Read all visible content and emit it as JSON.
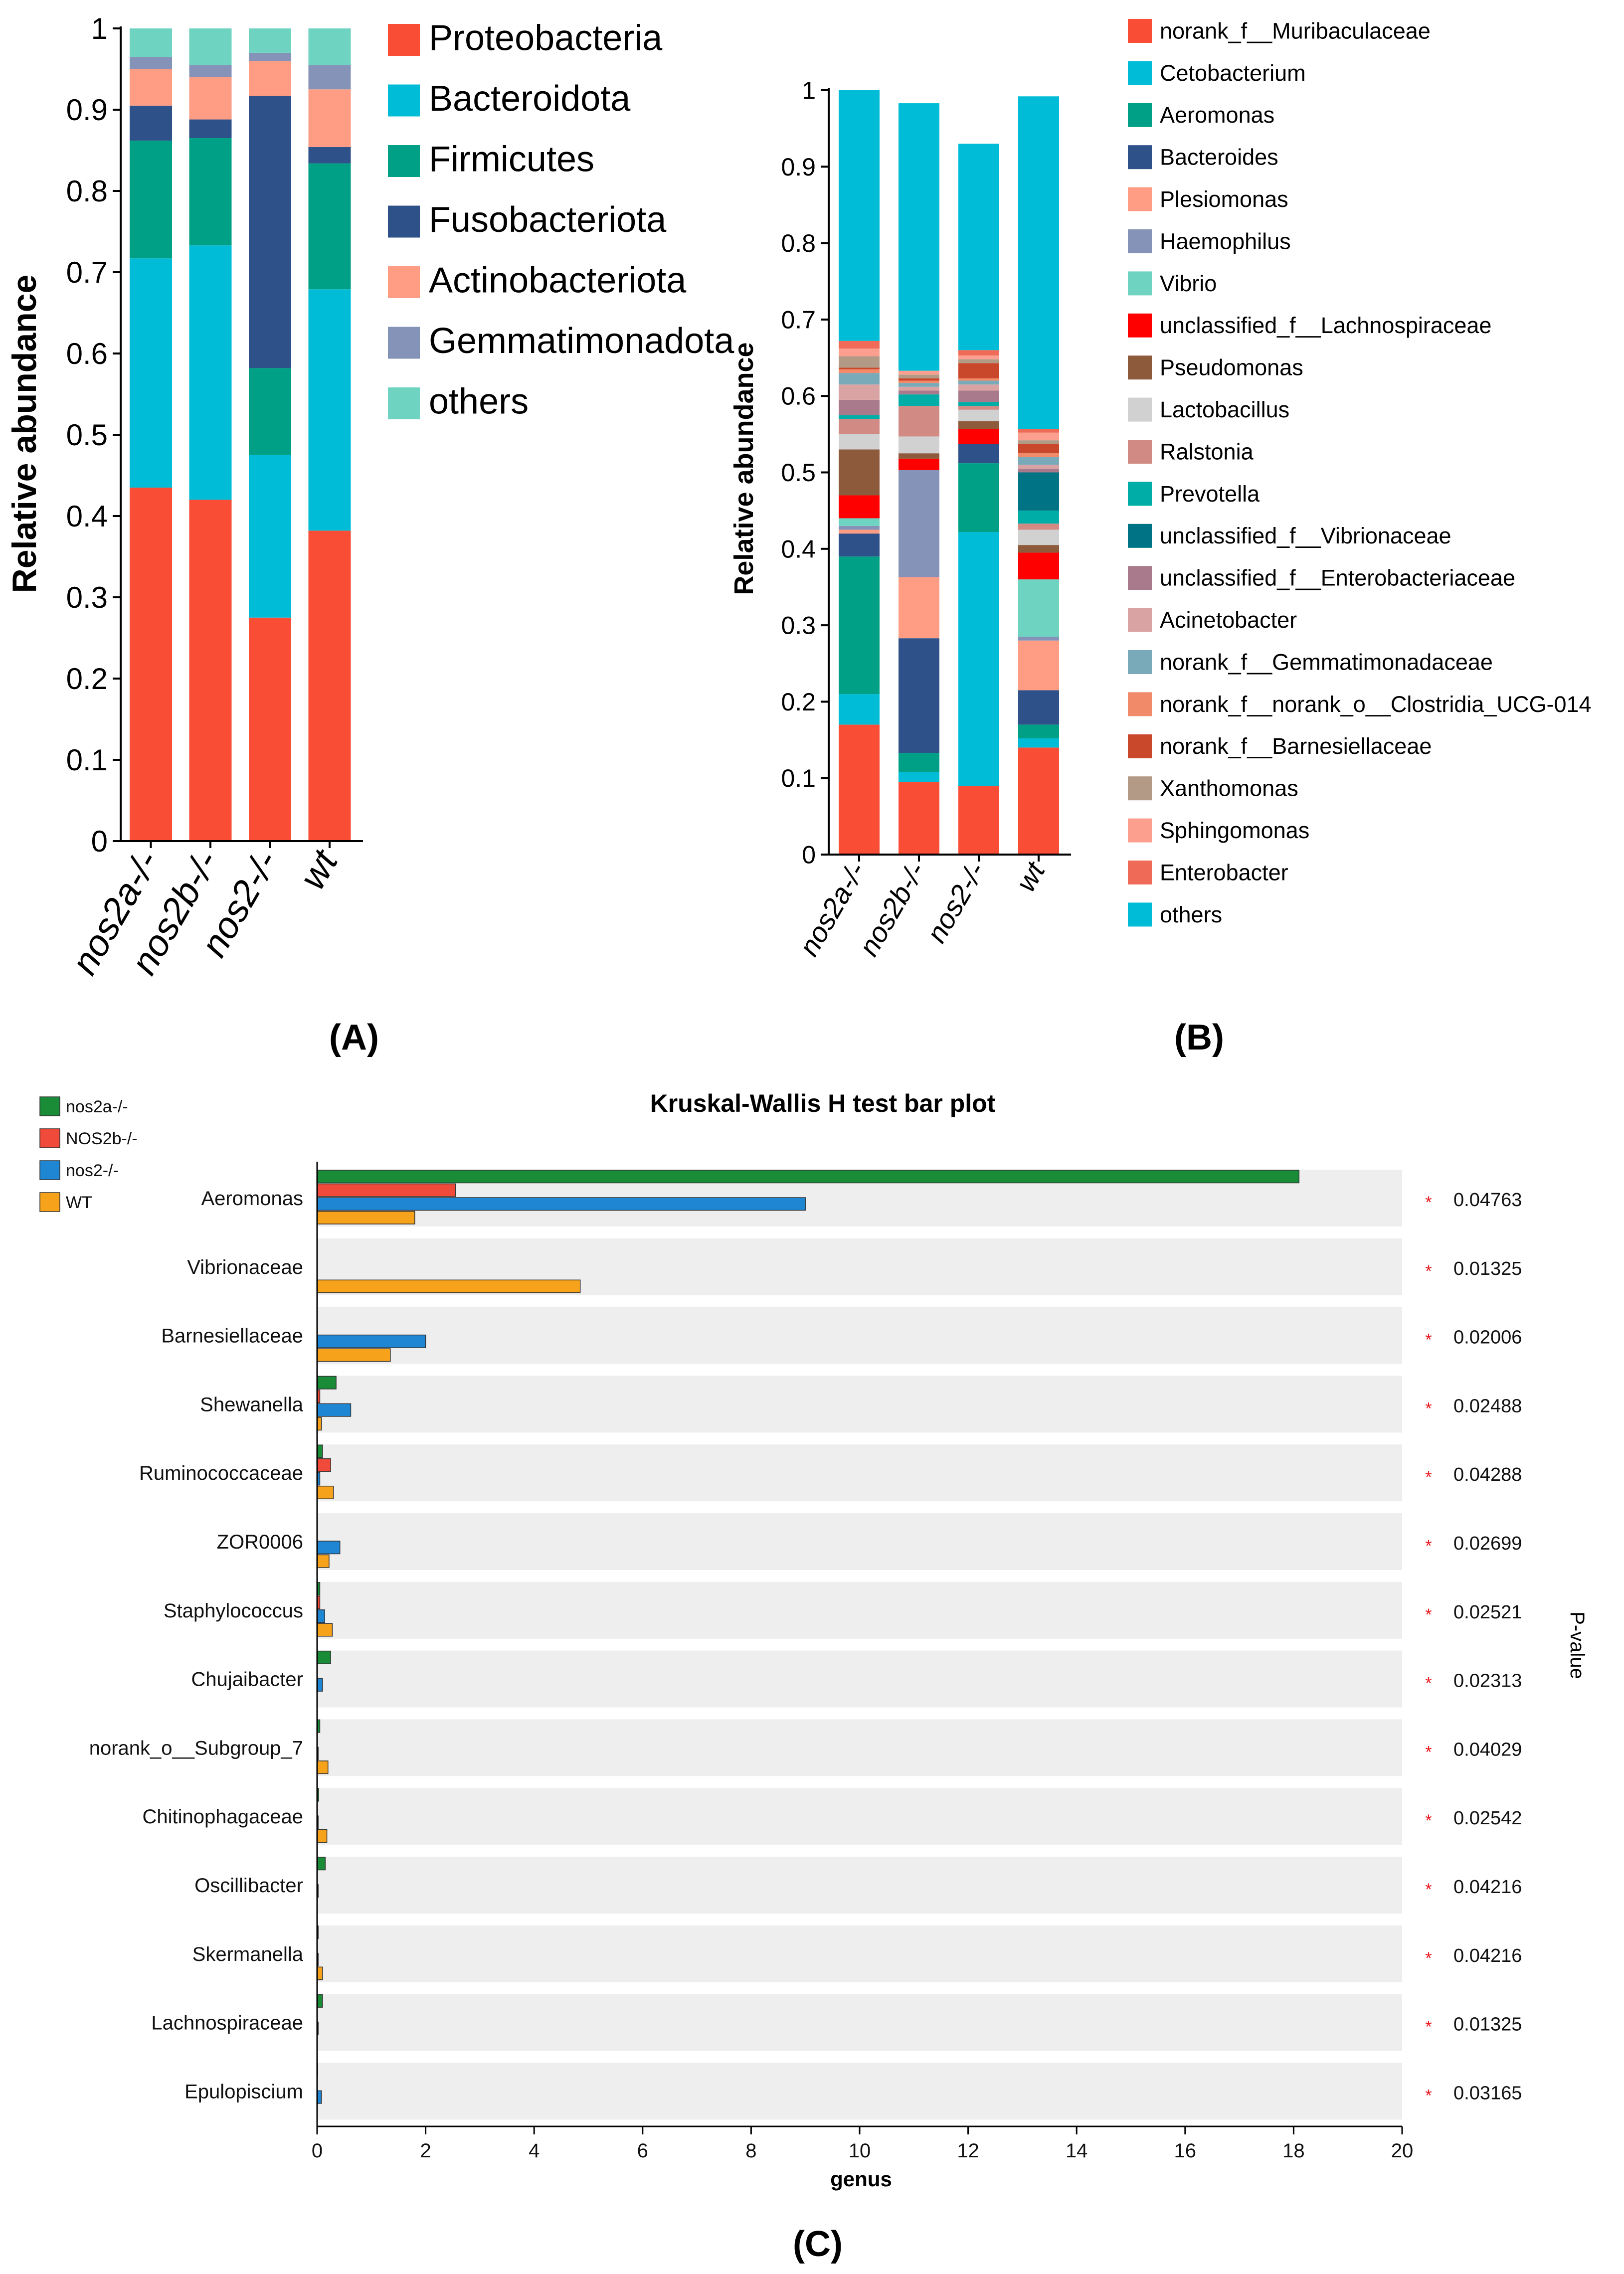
{
  "chart_data": [
    {
      "panel_label": "A",
      "type": "bar",
      "stacked": true,
      "ylabel": "Relative abundance",
      "ylim": [
        0,
        1
      ],
      "yticks": [
        "0",
        "0.1",
        "0.2",
        "0.3",
        "0.4",
        "0.5",
        "0.6",
        "0.7",
        "0.8",
        "0.9",
        "1"
      ],
      "categories": [
        "nos2a-/-",
        "nos2b-/-",
        "nos2-/-",
        "wt"
      ],
      "legend_position": "right",
      "series": [
        {
          "name": "Proteobacteria",
          "color": "#f94e35",
          "values": [
            0.435,
            0.42,
            0.275,
            0.382
          ]
        },
        {
          "name": "Bacteroidota",
          "color": "#00bcd6",
          "values": [
            0.282,
            0.313,
            0.2,
            0.297
          ]
        },
        {
          "name": "Firmicutes",
          "color": "#00a086",
          "values": [
            0.145,
            0.132,
            0.107,
            0.155
          ]
        },
        {
          "name": "Fusobacteriota",
          "color": "#2f518a",
          "values": [
            0.043,
            0.023,
            0.335,
            0.02
          ]
        },
        {
          "name": "Actinobacteriota",
          "color": "#fe9c84",
          "values": [
            0.045,
            0.052,
            0.043,
            0.071
          ]
        },
        {
          "name": "Gemmatimonadota",
          "color": "#8493b7",
          "values": [
            0.015,
            0.015,
            0.01,
            0.03
          ]
        },
        {
          "name": "others",
          "color": "#6fd3c2",
          "values": [
            0.035,
            0.045,
            0.03,
            0.045
          ]
        }
      ]
    },
    {
      "panel_label": "B",
      "type": "bar",
      "stacked": true,
      "ylabel": "Relative abundance",
      "ylim": [
        0,
        1
      ],
      "yticks": [
        "0",
        "0.1",
        "0.2",
        "0.3",
        "0.4",
        "0.5",
        "0.6",
        "0.7",
        "0.8",
        "0.9",
        "1"
      ],
      "categories": [
        "nos2a-/-",
        "nos2b-/-",
        "nos2-/-",
        "wt"
      ],
      "legend_position": "right",
      "series": [
        {
          "name": "norank_f__Muribaculaceae",
          "color": "#f94e35",
          "values": [
            0.17,
            0.095,
            0.09,
            0.14
          ]
        },
        {
          "name": "Cetobacterium",
          "color": "#00bcd6",
          "values": [
            0.04,
            0.013,
            0.332,
            0.012
          ]
        },
        {
          "name": "Aeromonas",
          "color": "#00a086",
          "values": [
            0.18,
            0.025,
            0.09,
            0.018
          ]
        },
        {
          "name": "Bacteroides",
          "color": "#2f518a",
          "values": [
            0.03,
            0.15,
            0.025,
            0.045
          ]
        },
        {
          "name": "Plesiomonas",
          "color": "#fe9c84",
          "values": [
            0.005,
            0.08,
            0.0,
            0.065
          ]
        },
        {
          "name": "Haemophilus",
          "color": "#8493b7",
          "values": [
            0.005,
            0.14,
            0.0,
            0.005
          ]
        },
        {
          "name": "Vibrio",
          "color": "#6fd3c2",
          "values": [
            0.01,
            0.0,
            0.0,
            0.075
          ]
        },
        {
          "name": "unclassified_f__Lachnospiraceae",
          "color": "#ff0000",
          "values": [
            0.03,
            0.015,
            0.02,
            0.035
          ]
        },
        {
          "name": "Pseudomonas",
          "color": "#8e5a3c",
          "values": [
            0.06,
            0.007,
            0.01,
            0.01
          ]
        },
        {
          "name": "Lactobacillus",
          "color": "#d1d1d1",
          "values": [
            0.02,
            0.022,
            0.015,
            0.02
          ]
        },
        {
          "name": "Ralstonia",
          "color": "#d18b84",
          "values": [
            0.02,
            0.04,
            0.005,
            0.008
          ]
        },
        {
          "name": "Prevotella",
          "color": "#00aea7",
          "values": [
            0.005,
            0.015,
            0.005,
            0.017
          ]
        },
        {
          "name": "unclassified_f__Vibrionaceae",
          "color": "#007485",
          "values": [
            0.0,
            0.0,
            0.0,
            0.05
          ]
        },
        {
          "name": "unclassified_f__Enterobacteriaceae",
          "color": "#a87a8b",
          "values": [
            0.02,
            0.005,
            0.015,
            0.005
          ]
        },
        {
          "name": "Acinetobacter",
          "color": "#d9a3a3",
          "values": [
            0.02,
            0.005,
            0.008,
            0.005
          ]
        },
        {
          "name": "norank_f__Gemmatimonadaceae",
          "color": "#78aab9",
          "values": [
            0.015,
            0.005,
            0.005,
            0.01
          ]
        },
        {
          "name": "norank_f__norank_o__Clostridia_UCG-014",
          "color": "#f08a68",
          "values": [
            0.005,
            0.003,
            0.003,
            0.005
          ]
        },
        {
          "name": "norank_f__Barnesiellaceae",
          "color": "#c9482c",
          "values": [
            0.002,
            0.003,
            0.02,
            0.012
          ]
        },
        {
          "name": "Xanthomonas",
          "color": "#b39a87",
          "values": [
            0.015,
            0.005,
            0.005,
            0.005
          ]
        },
        {
          "name": "Sphingomonas",
          "color": "#fc9f8e",
          "values": [
            0.01,
            0.005,
            0.005,
            0.01
          ]
        },
        {
          "name": "Enterobacter",
          "color": "#ef6a57",
          "values": [
            0.01,
            0.0,
            0.007,
            0.005
          ]
        },
        {
          "name": "others",
          "color": "#00bcd6",
          "values": [
            0.33,
            0.35,
            0.27,
            0.435
          ]
        }
      ]
    },
    {
      "panel_label": "C",
      "type": "bar",
      "orientation": "horizontal",
      "title": "Kruskal-Wallis H test bar plot",
      "xlabel": "genus",
      "right_label": "P-value",
      "xlim": [
        0,
        20
      ],
      "xticks": [
        "0",
        "2",
        "4",
        "6",
        "8",
        "10",
        "12",
        "14",
        "16",
        "18",
        "20"
      ],
      "legend_position": "top-left",
      "significance_marker": "*",
      "categories": [
        "Aeromonas",
        "Vibrionaceae",
        "Barnesiellaceae",
        "Shewanella",
        "Ruminococcaceae",
        "ZOR0006",
        "Staphylococcus",
        "Chujaibacter",
        "norank_o__Subgroup_7",
        "Chitinophagaceae",
        "Oscillibacter",
        "Skermanella",
        "Lachnospiraceae",
        "Epulopiscium"
      ],
      "p_values": [
        "0.04763",
        "0.01325",
        "0.02006",
        "0.02488",
        "0.04288",
        "0.02699",
        "0.02521",
        "0.02313",
        "0.04029",
        "0.02542",
        "0.04216",
        "0.04216",
        "0.01325",
        "0.03165"
      ],
      "series": [
        {
          "name": "nos2a-/-",
          "color": "#1a8c37",
          "values": [
            18.1,
            0.0,
            0.0,
            0.35,
            0.1,
            0.0,
            0.05,
            0.25,
            0.05,
            0.03,
            0.15,
            0.02,
            0.1,
            0.01
          ]
        },
        {
          "name": "NOS2b-/-",
          "color": "#f04a3a",
          "values": [
            2.55,
            0.0,
            0.0,
            0.05,
            0.25,
            0.0,
            0.05,
            0.0,
            0.0,
            0.0,
            0.0,
            0.0,
            0.0,
            0.0
          ]
        },
        {
          "name": "nos2-/-",
          "color": "#1f86d4",
          "values": [
            9.0,
            0.0,
            2.0,
            0.62,
            0.05,
            0.42,
            0.14,
            0.1,
            0.02,
            0.02,
            0.02,
            0.02,
            0.02,
            0.08
          ]
        },
        {
          "name": "WT",
          "color": "#f7a21b",
          "values": [
            1.8,
            4.85,
            1.35,
            0.08,
            0.3,
            0.22,
            0.28,
            0.0,
            0.2,
            0.18,
            0.0,
            0.1,
            0.0,
            0.0
          ]
        }
      ]
    }
  ]
}
